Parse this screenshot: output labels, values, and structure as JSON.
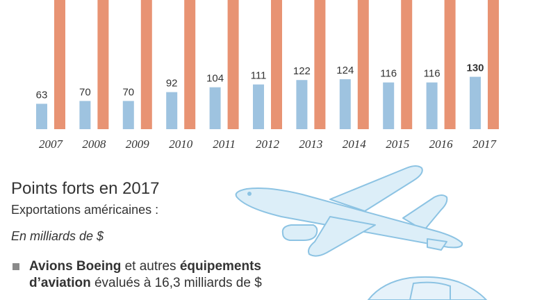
{
  "chart_data": {
    "type": "bar",
    "categories": [
      "2007",
      "2008",
      "2009",
      "2010",
      "2011",
      "2012",
      "2013",
      "2014",
      "2015",
      "2016",
      "2017"
    ],
    "series": [
      {
        "values": [
          63,
          70,
          70,
          92,
          104,
          111,
          122,
          124,
          116,
          116,
          130
        ],
        "color": "#9ec3e0",
        "labels_shown": true
      },
      {
        "values": null,
        "color": "#e89373",
        "labels_shown": false,
        "note": "bars extend beyond top edge of crop"
      }
    ],
    "highlight_last_label_bold": true,
    "ylim": [
      0,
      230
    ]
  },
  "colors": {
    "blue_bar": "#9ec3e0",
    "orange_bar": "#e89373",
    "plane_fill": "#dceef8",
    "plane_stroke": "#8cc3e3"
  },
  "icons": [
    "airplane-icon",
    "car-icon"
  ],
  "highlights": {
    "title": "Points forts en 2017",
    "subtitle": "Exportations américaines :",
    "unit": "En milliards de $",
    "bullet": {
      "bold1": "Avions Boeing",
      "text1": " et autres ",
      "bold2": "équipements d’aviation",
      "text2": " évalués à 16,3 milliards de $"
    }
  }
}
